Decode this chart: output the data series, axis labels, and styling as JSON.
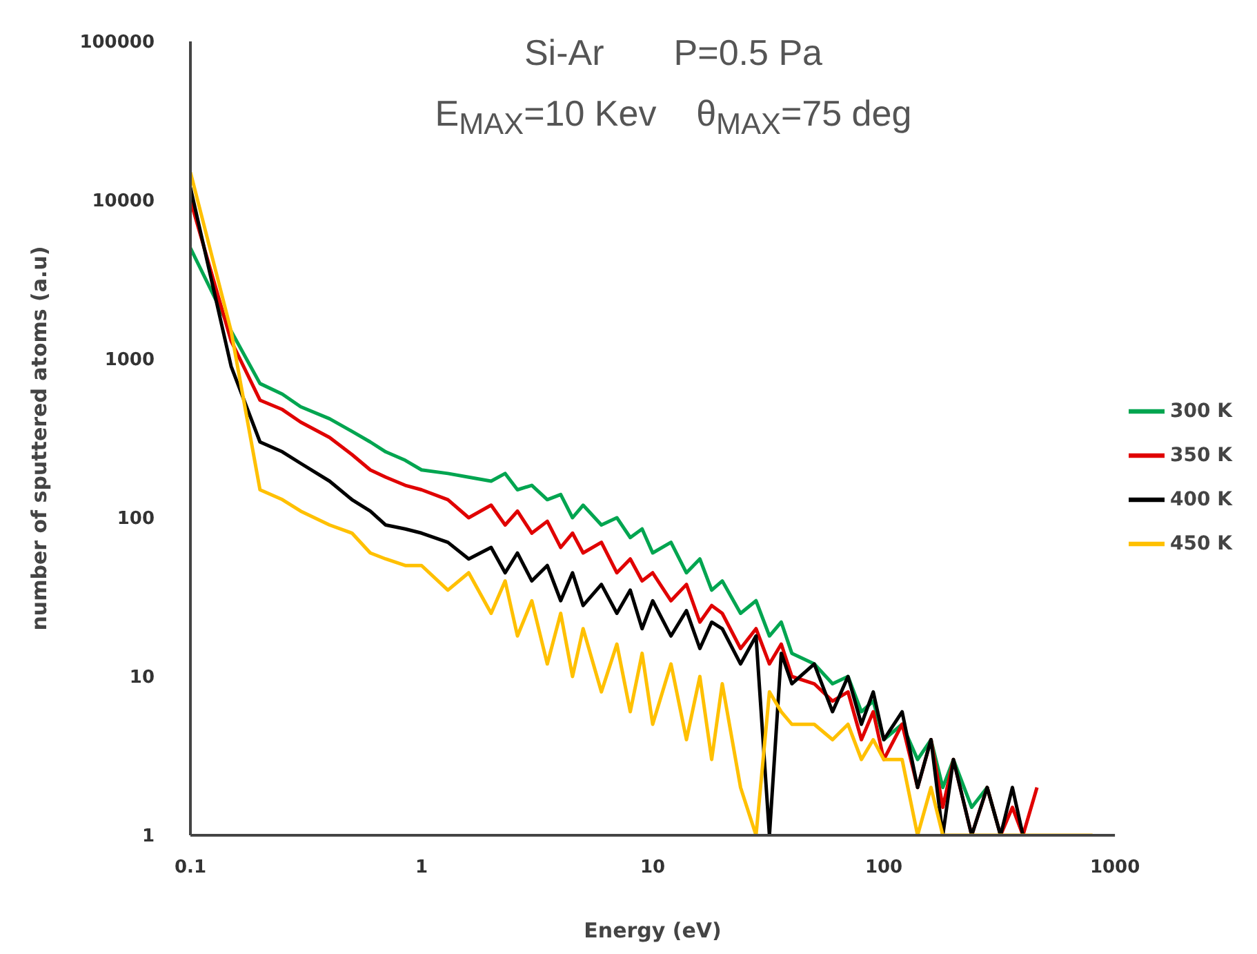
{
  "chart_data": {
    "type": "line",
    "title": "Si-Ar       P=0.5 Pa",
    "subtitle": "E$_{MAX}$=10 Kev    θ$_{MAX}$=75 deg",
    "xlabel": "Energy (eV)",
    "ylabel": "number of sputtered atoms (a.u)",
    "log": "xy",
    "xlim": [
      0.1,
      1000
    ],
    "xticks": [
      0.1,
      1,
      10,
      100,
      1000
    ],
    "ylim": [
      1,
      100000
    ],
    "yticks": [
      1,
      10,
      100,
      1000,
      10000,
      100000
    ],
    "grid": false,
    "legend": "right",
    "marker": "none",
    "line_style": "solid",
    "series": [
      {
        "name": "300 K",
        "color": "#00a550",
        "x": [
          0.1,
          0.15,
          0.2,
          0.25,
          0.3,
          0.4,
          0.5,
          0.6,
          0.7,
          0.85,
          1,
          1.3,
          1.6,
          2,
          2.3,
          2.6,
          3,
          3.5,
          4,
          4.5,
          5,
          6,
          7,
          8,
          9,
          10,
          12,
          14,
          16,
          18,
          20,
          24,
          28,
          32,
          36,
          40,
          50,
          60,
          70,
          80,
          90,
          100,
          120,
          140,
          160,
          180,
          200,
          240,
          280,
          320
        ],
        "values": [
          5000,
          1500,
          700,
          600,
          500,
          420,
          350,
          300,
          260,
          230,
          200,
          190,
          180,
          170,
          190,
          150,
          160,
          130,
          140,
          100,
          120,
          90,
          100,
          75,
          85,
          60,
          70,
          45,
          55,
          35,
          40,
          25,
          30,
          18,
          22,
          14,
          12,
          9,
          10,
          6,
          7,
          4,
          5,
          3,
          4,
          2,
          3,
          1.5,
          2,
          1
        ]
      },
      {
        "name": "350 K",
        "color": "#e00000",
        "x": [
          0.1,
          0.15,
          0.2,
          0.25,
          0.3,
          0.4,
          0.5,
          0.6,
          0.7,
          0.85,
          1,
          1.3,
          1.6,
          2,
          2.3,
          2.6,
          3,
          3.5,
          4,
          4.5,
          5,
          6,
          7,
          8,
          9,
          10,
          12,
          14,
          16,
          18,
          20,
          24,
          28,
          32,
          36,
          40,
          50,
          60,
          70,
          80,
          90,
          100,
          120,
          140,
          160,
          180,
          200,
          240,
          280,
          320,
          360,
          400,
          460
        ],
        "values": [
          10000,
          1300,
          550,
          480,
          400,
          320,
          250,
          200,
          180,
          160,
          150,
          130,
          100,
          120,
          90,
          110,
          80,
          95,
          65,
          80,
          60,
          70,
          45,
          55,
          40,
          45,
          30,
          38,
          22,
          28,
          25,
          15,
          20,
          12,
          16,
          10,
          9,
          7,
          8,
          4,
          6,
          3,
          5,
          2,
          4,
          1.5,
          3,
          1,
          2,
          1,
          1.5,
          1,
          2
        ]
      },
      {
        "name": "400 K",
        "color": "#000000",
        "x": [
          0.1,
          0.15,
          0.2,
          0.25,
          0.3,
          0.4,
          0.5,
          0.6,
          0.7,
          0.85,
          1,
          1.3,
          1.6,
          2,
          2.3,
          2.6,
          3,
          3.5,
          4,
          4.5,
          5,
          6,
          7,
          8,
          9,
          10,
          12,
          14,
          16,
          18,
          20,
          24,
          28,
          32,
          36,
          40,
          50,
          60,
          70,
          80,
          90,
          100,
          120,
          140,
          160,
          180,
          200,
          240,
          280,
          320,
          360,
          400
        ],
        "values": [
          12000,
          900,
          300,
          260,
          220,
          170,
          130,
          110,
          90,
          85,
          80,
          70,
          55,
          65,
          45,
          60,
          40,
          50,
          30,
          45,
          28,
          38,
          25,
          35,
          20,
          30,
          18,
          26,
          15,
          22,
          20,
          12,
          18,
          1,
          14,
          9,
          12,
          6,
          10,
          5,
          8,
          4,
          6,
          2,
          4,
          1,
          3,
          1,
          2,
          1,
          2,
          1
        ]
      },
      {
        "name": "450 K",
        "color": "#ffc000",
        "x": [
          0.1,
          0.15,
          0.2,
          0.25,
          0.3,
          0.4,
          0.5,
          0.6,
          0.7,
          0.85,
          1,
          1.3,
          1.6,
          2,
          2.3,
          2.6,
          3,
          3.5,
          4,
          4.5,
          5,
          6,
          7,
          8,
          9,
          10,
          12,
          14,
          16,
          18,
          20,
          24,
          28,
          32,
          36,
          40,
          50,
          60,
          70,
          80,
          90,
          100,
          120,
          140,
          160,
          180,
          200,
          300,
          500,
          800
        ],
        "values": [
          15000,
          1500,
          150,
          130,
          110,
          90,
          80,
          60,
          55,
          50,
          50,
          35,
          45,
          25,
          40,
          18,
          30,
          12,
          25,
          10,
          20,
          8,
          16,
          6,
          14,
          5,
          12,
          4,
          10,
          3,
          9,
          2,
          1,
          8,
          6,
          5,
          5,
          4,
          5,
          3,
          4,
          3,
          3,
          1,
          2,
          1,
          1,
          1,
          1,
          1
        ]
      }
    ]
  }
}
